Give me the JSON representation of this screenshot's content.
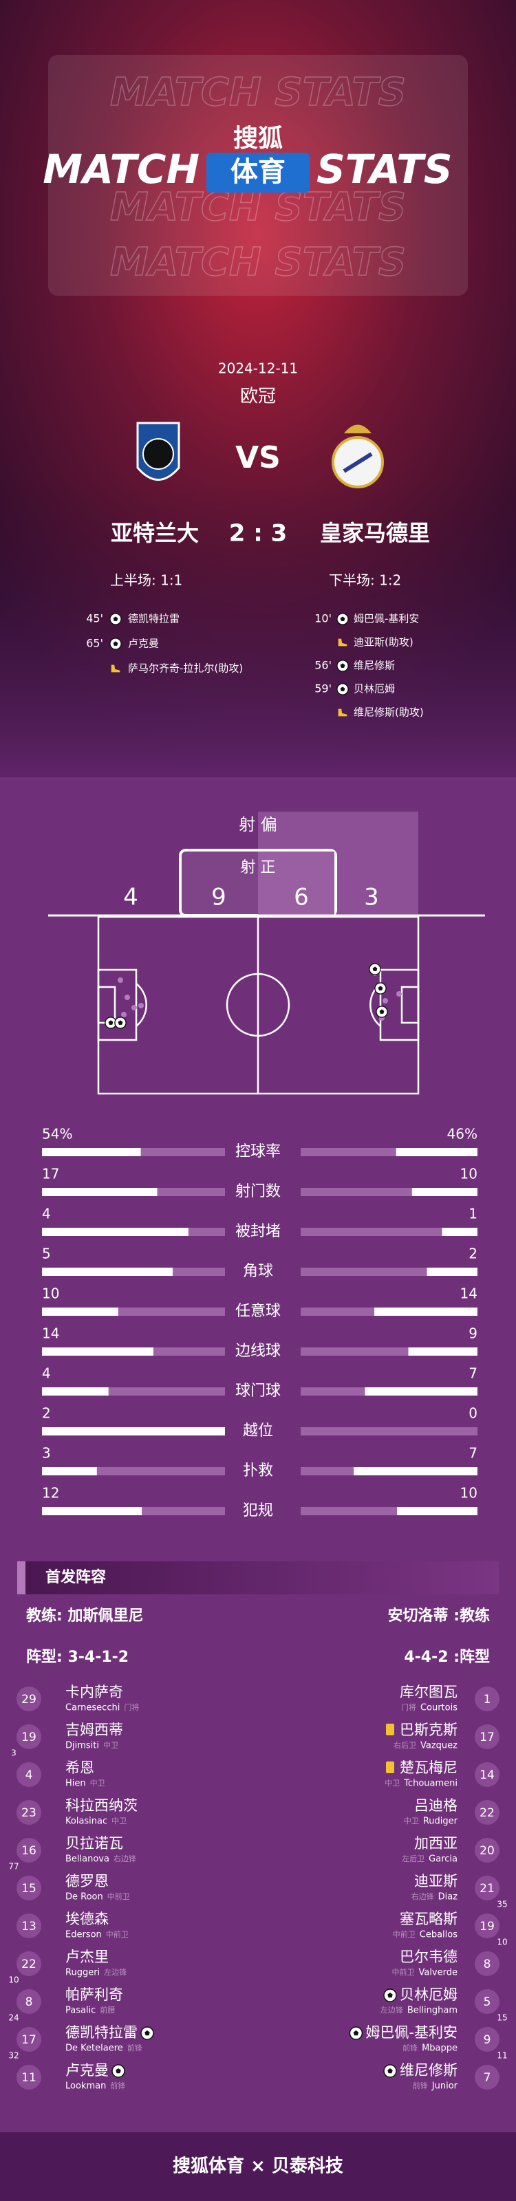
{
  "header": {
    "bg_text": "MATCH STATS",
    "brand": "搜狐",
    "title_left": "MATCH",
    "title_mid": "体育",
    "title_right": "STATS"
  },
  "match": {
    "date": "2024-12-11",
    "competition": "欧冠",
    "vs": "VS",
    "score": "2 : 3",
    "home": {
      "name": "亚特兰大",
      "half": "上半场: 1:1",
      "events": [
        {
          "minute": "45'",
          "player": "德凯特拉雷",
          "type": "goal"
        },
        {
          "minute": "65'",
          "player": "卢克曼",
          "type": "goal"
        },
        {
          "player": "萨马尔齐奇-拉扎尔(助攻)",
          "type": "assist"
        }
      ]
    },
    "away": {
      "name": "皇家马德里",
      "half": "下半场: 1:2",
      "events": [
        {
          "minute": "10'",
          "player": "姆巴佩-基利安",
          "type": "goal"
        },
        {
          "player": "迪亚斯(助攻)",
          "type": "assist"
        },
        {
          "minute": "56'",
          "player": "维尼修斯",
          "type": "goal"
        },
        {
          "minute": "59'",
          "player": "贝林厄姆",
          "type": "goal"
        },
        {
          "player": "维尼修斯(助攻)",
          "type": "assist"
        }
      ]
    }
  },
  "shots": {
    "off_label": "射 偏",
    "on_label": "射 正",
    "home_off": 4,
    "home_on": 9,
    "away_on": 6,
    "away_off": 3
  },
  "stats": [
    {
      "label": "控球率",
      "home": 54,
      "away": 46,
      "home_label": "54%",
      "away_label": "46%"
    },
    {
      "label": "射门数",
      "home": 17,
      "away": 10
    },
    {
      "label": "被封堵",
      "home": 4,
      "away": 1
    },
    {
      "label": "角球",
      "home": 5,
      "away": 2
    },
    {
      "label": "任意球",
      "home": 10,
      "away": 14
    },
    {
      "label": "边线球",
      "home": 14,
      "away": 9
    },
    {
      "label": "球门球",
      "home": 4,
      "away": 7
    },
    {
      "label": "越位",
      "home": 2,
      "away": 0
    },
    {
      "label": "扑救",
      "home": 3,
      "away": 7
    },
    {
      "label": "犯规",
      "home": 12,
      "away": 10
    }
  ],
  "lineup": {
    "title": "首发阵容",
    "home": {
      "coach": "教练: 加斯佩里尼",
      "formation": "阵型: 3-4-1-2",
      "players": [
        {
          "number": 29,
          "name": "卡内萨奇",
          "name_en": "Carnesecchi",
          "position": "门将"
        },
        {
          "number": 19,
          "name": "吉姆西蒂",
          "name_en": "Djimsiti",
          "position": "中卫",
          "sub": 3
        },
        {
          "number": 4,
          "name": "希恩",
          "name_en": "Hien",
          "position": "中卫"
        },
        {
          "number": 23,
          "name": "科拉西纳茨",
          "name_en": "Kolasinac",
          "position": "中卫"
        },
        {
          "number": 16,
          "name": "贝拉诺瓦",
          "name_en": "Bellanova",
          "position": "右边锋",
          "sub": 77
        },
        {
          "number": 15,
          "name": "德罗恩",
          "name_en": "De Roon",
          "position": "中前卫"
        },
        {
          "number": 13,
          "name": "埃德森",
          "name_en": "Ederson",
          "position": "中前卫"
        },
        {
          "number": 22,
          "name": "卢杰里",
          "name_en": "Ruggeri",
          "position": "左边锋",
          "sub": 10
        },
        {
          "number": 8,
          "name": "帕萨利奇",
          "name_en": "Pasalic",
          "position": "前腰",
          "sub": 24
        },
        {
          "number": 17,
          "name": "德凯特拉雷",
          "name_en": "De Ketelaere",
          "position": "前锋",
          "sub": 32,
          "goal": 1
        },
        {
          "number": 11,
          "name": "卢克曼",
          "name_en": "Lookman",
          "position": "前锋",
          "goal": 1
        }
      ]
    },
    "away": {
      "coach": "安切洛蒂 :教练",
      "formation": "4-4-2 :阵型",
      "players": [
        {
          "number": 1,
          "name": "库尔图瓦",
          "name_en": "Courtois",
          "position": "门将"
        },
        {
          "number": 17,
          "name": "巴斯克斯",
          "name_en": "Vazquez",
          "position": "右后卫",
          "card": "yellow"
        },
        {
          "number": 14,
          "name": "楚瓦梅尼",
          "name_en": "Tchouameni",
          "position": "中卫",
          "card": "yellow"
        },
        {
          "number": 22,
          "name": "吕迪格",
          "name_en": "Rudiger",
          "position": "中卫"
        },
        {
          "number": 20,
          "name": "加西亚",
          "name_en": "Garcia",
          "position": "左后卫"
        },
        {
          "number": 21,
          "name": "迪亚斯",
          "name_en": "Diaz",
          "position": "右边锋",
          "sub": 35
        },
        {
          "number": 19,
          "name": "塞瓦略斯",
          "name_en": "Ceballos",
          "position": "中前卫",
          "sub": 10
        },
        {
          "number": 8,
          "name": "巴尔韦德",
          "name_en": "Valverde",
          "position": "中前卫"
        },
        {
          "number": 5,
          "name": "贝林厄姆",
          "name_en": "Bellingham",
          "position": "左边锋",
          "sub": 15,
          "goal": 1
        },
        {
          "number": 9,
          "name": "姆巴佩-基利安",
          "name_en": "Mbappe",
          "position": "前锋",
          "sub": 11,
          "goal": 1
        },
        {
          "number": 7,
          "name": "维尼修斯",
          "name_en": "Junior",
          "position": "前锋",
          "goal": 1
        }
      ]
    }
  },
  "footer": "搜狐体育 × 贝泰科技"
}
